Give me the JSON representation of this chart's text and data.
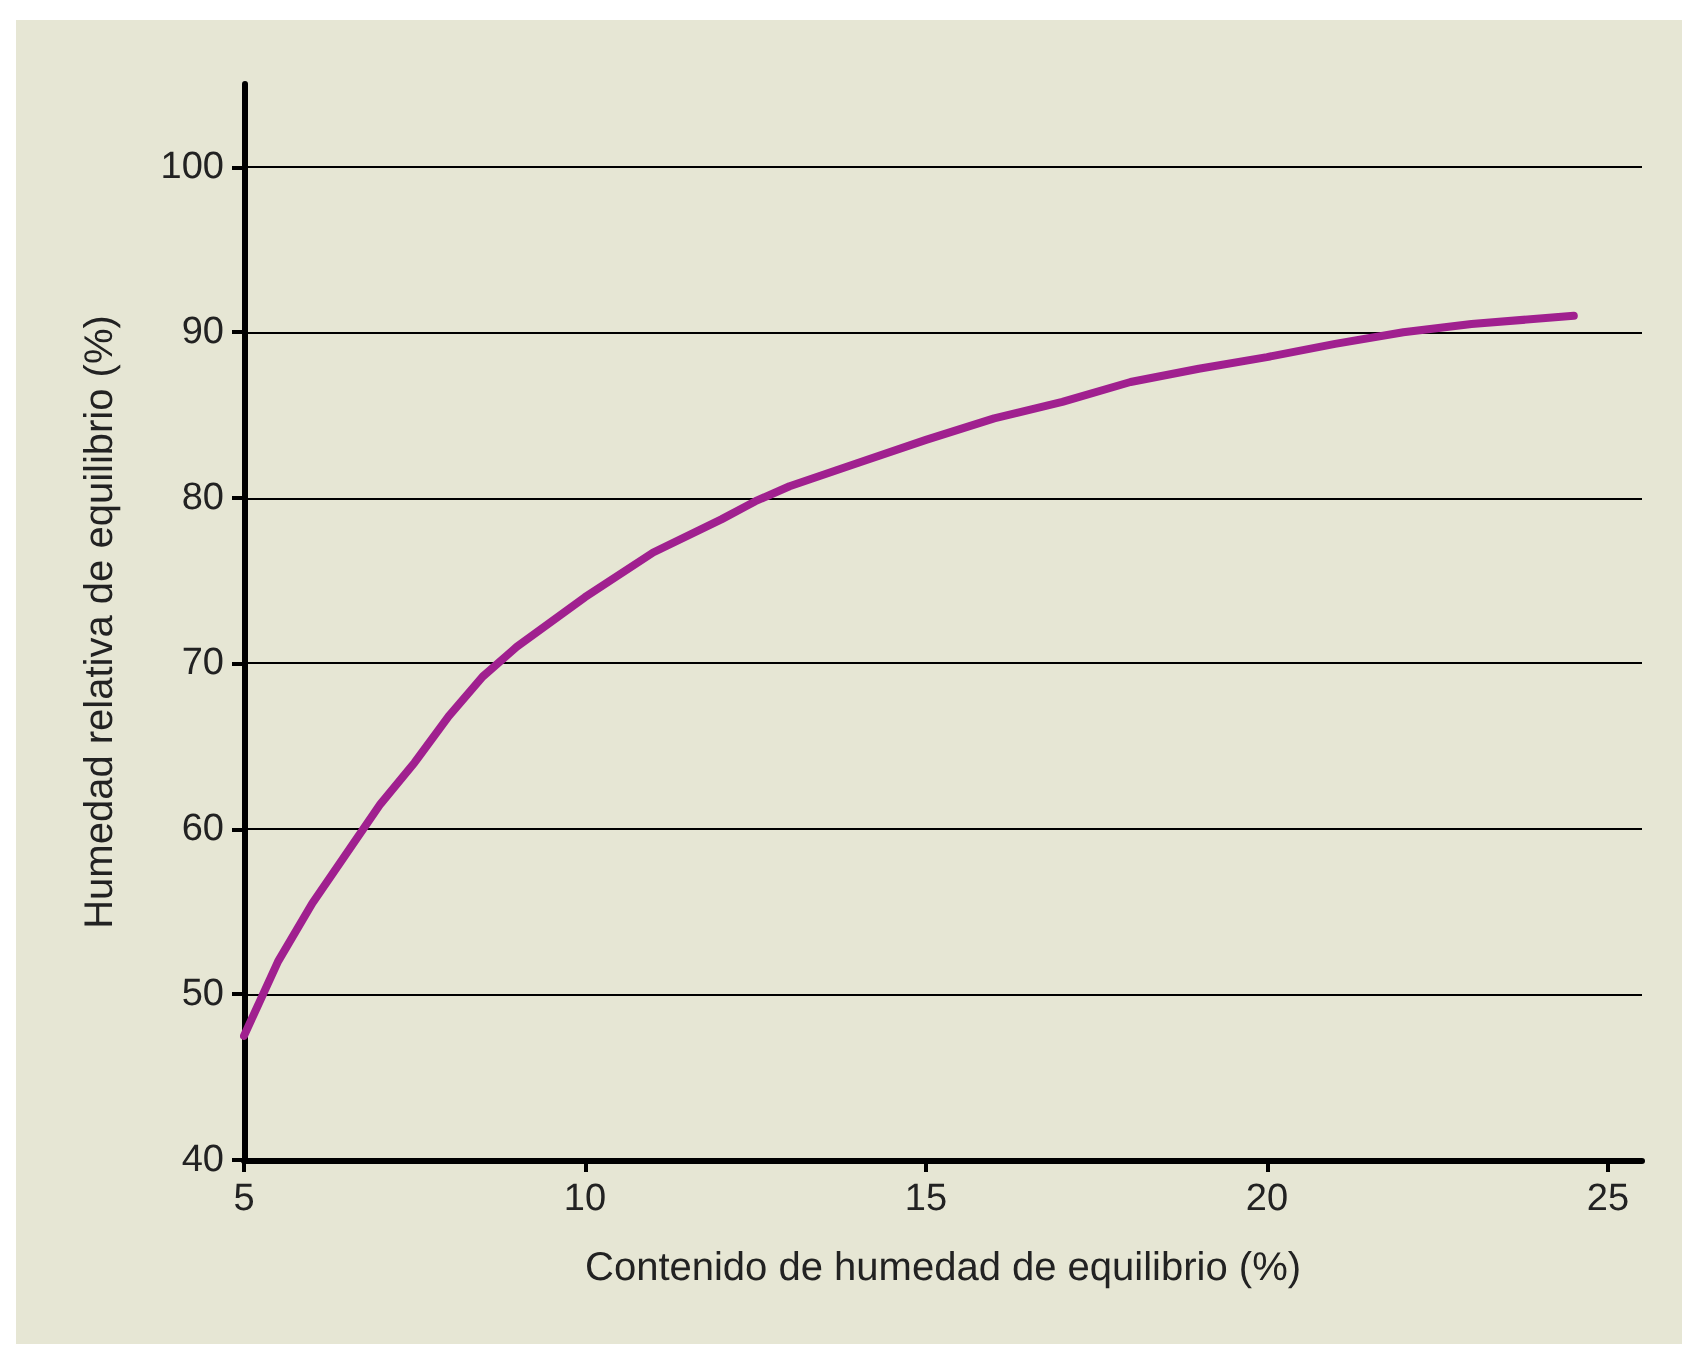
{
  "chart_data": {
    "type": "line",
    "xlabel": "Contenido de humedad de equilibrio (%)",
    "ylabel": "Humedad relativa de equilibrio (%)",
    "x": [
      5,
      5.5,
      6,
      6.5,
      7,
      7.5,
      8,
      8.5,
      9,
      10,
      11,
      12,
      12.5,
      13,
      14,
      15,
      16,
      17,
      18,
      19,
      20,
      21,
      22,
      23,
      24.5
    ],
    "series": [
      {
        "color": "#a0208f",
        "values": [
          47.5,
          52,
          55.5,
          58.5,
          61.5,
          64,
          66.8,
          69.2,
          71,
          74,
          76.7,
          78.7,
          79.8,
          80.7,
          82.1,
          83.5,
          84.8,
          85.8,
          87,
          87.8,
          88.5,
          89.3,
          90,
          90.5,
          91
        ]
      }
    ],
    "xlim": [
      5,
      25.5
    ],
    "xticks": [
      5,
      10,
      15,
      20,
      25
    ],
    "ylim": [
      40,
      105
    ],
    "yticks": [
      40,
      50,
      60,
      70,
      80,
      90,
      100
    ],
    "grid": "y",
    "marker": "none",
    "line_style": "solid"
  }
}
